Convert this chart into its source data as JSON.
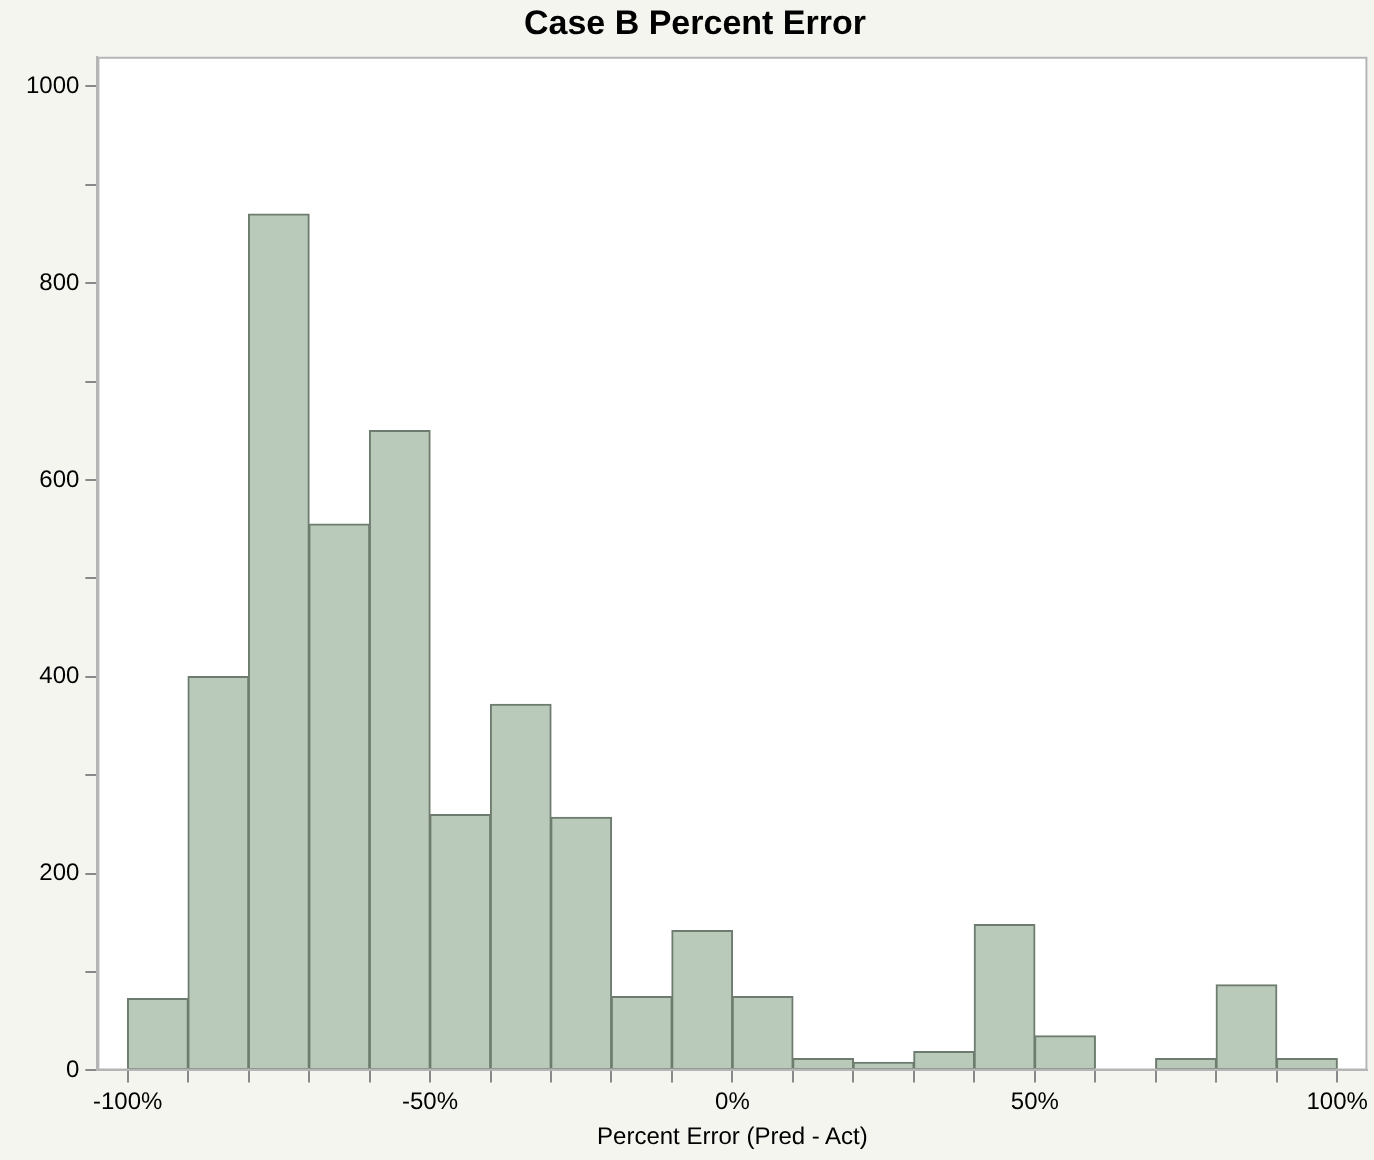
{
  "chart_data": {
    "type": "histogram",
    "title": "Case B Percent Error",
    "xlabel": "Percent Error (Pred - Act)",
    "bins": [
      -100,
      -90,
      -80,
      -70,
      -60,
      -50,
      -40,
      -30,
      -20,
      -10,
      0,
      10,
      20,
      30,
      40,
      50,
      60,
      70,
      80,
      90,
      100
    ],
    "values": [
      73,
      400,
      870,
      555,
      650,
      260,
      372,
      257,
      75,
      142,
      75,
      12,
      8,
      19,
      148,
      35,
      0,
      12,
      87,
      12
    ],
    "color": "#b9c9ba",
    "xlim": [
      -105,
      105
    ],
    "xticks": [
      {
        "value": -100,
        "label": "-100%"
      },
      {
        "value": -90,
        "label": null
      },
      {
        "value": -80,
        "label": null
      },
      {
        "value": -70,
        "label": null
      },
      {
        "value": -60,
        "label": null
      },
      {
        "value": -50,
        "label": "-50%"
      },
      {
        "value": -40,
        "label": null
      },
      {
        "value": -30,
        "label": null
      },
      {
        "value": -20,
        "label": null
      },
      {
        "value": -10,
        "label": null
      },
      {
        "value": 0,
        "label": "0%"
      },
      {
        "value": 10,
        "label": null
      },
      {
        "value": 20,
        "label": null
      },
      {
        "value": 30,
        "label": null
      },
      {
        "value": 40,
        "label": null
      },
      {
        "value": 50,
        "label": "50%"
      },
      {
        "value": 60,
        "label": null
      },
      {
        "value": 70,
        "label": null
      },
      {
        "value": 80,
        "label": null
      },
      {
        "value": 90,
        "label": null
      },
      {
        "value": 100,
        "label": "100%"
      }
    ],
    "ylim": [
      0,
      1030
    ],
    "yticks": [
      0,
      {
        "value": 100,
        "label": null
      },
      200,
      {
        "value": 300,
        "label": null
      },
      400,
      {
        "value": 500,
        "label": null
      },
      600,
      {
        "value": 700,
        "label": null
      },
      800,
      {
        "value": 900,
        "label": null
      },
      1000
    ],
    "grid": false,
    "legend": false
  }
}
